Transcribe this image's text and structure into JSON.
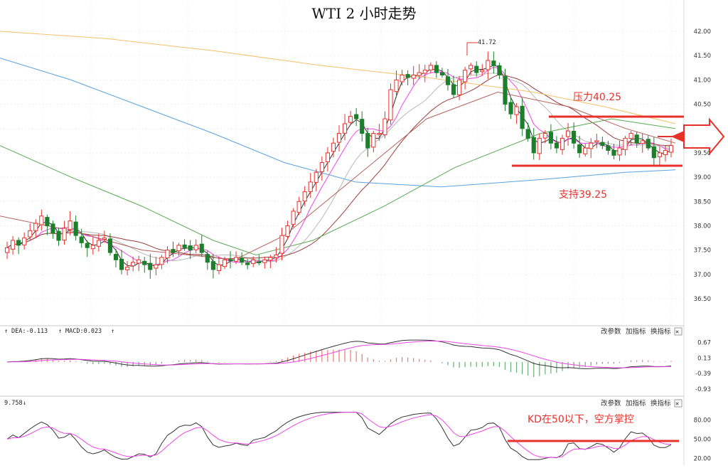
{
  "page": {
    "title": "WTI 2 小时走势"
  },
  "price_axis": {
    "ticks": [
      "42.00",
      "41.50",
      "41.00",
      "40.50",
      "40.00",
      "39.50",
      "39.00",
      "38.50",
      "38.00",
      "37.50",
      "37.00",
      "36.50"
    ],
    "values": [
      42.0,
      41.5,
      41.0,
      40.5,
      40.0,
      39.5,
      39.0,
      38.5,
      38.0,
      37.5,
      37.0,
      36.5
    ],
    "range": [
      36.3,
      42.3
    ]
  },
  "annotations": {
    "high_label": "41.72",
    "resistance_label": "压力40.25",
    "resistance_value": 40.25,
    "support_label": "支持39.25",
    "support_value": 39.25
  },
  "macd_panel": {
    "header_dea": "DEA:-0.113",
    "header_macd": "MACD:0.023",
    "buttons": [
      "改参数",
      "加指标",
      "换指标"
    ],
    "close_symbol": "✕",
    "ticks": [
      "0.67",
      "0.13",
      "-0.39",
      "-0.93"
    ],
    "tick_values": [
      0.67,
      0.13,
      -0.39,
      -0.93
    ],
    "range": [
      -1.0,
      0.8
    ]
  },
  "kd_panel": {
    "header_value": "9.758",
    "buttons": [
      "改参数",
      "加指标",
      "换指标"
    ],
    "close_symbol": "✕",
    "ticks": [
      "80.00",
      "50.00",
      "20.00"
    ],
    "tick_values": [
      80,
      50,
      20
    ],
    "range": [
      16,
      96
    ],
    "note": "KD在50以下，空方掌控",
    "level_line": 50
  },
  "colors": {
    "up": "#e8312b",
    "down": "#1d7f2c",
    "annotation": "#e8312b",
    "ma_black": "#333333",
    "ma_magenta": "#ee46e6",
    "ma_gray": "#b8b8b8",
    "ma_brown": "#b4615c",
    "ma_green": "#5aaa55",
    "ma_blue": "#5aa2e0",
    "ma_orange": "#f5c168",
    "ma_maroon": "#9a3b3b"
  },
  "chart_data": [
    {
      "type": "candlestick",
      "title": "WTI 2 小时走势",
      "ylim": [
        36.3,
        42.3
      ],
      "grid": true,
      "series_close": [
        37.55,
        37.7,
        37.6,
        37.75,
        37.9,
        38.05,
        38.2,
        38.0,
        37.85,
        37.7,
        37.95,
        38.1,
        37.8,
        37.65,
        37.55,
        37.6,
        37.7,
        37.75,
        37.45,
        37.3,
        37.1,
        37.15,
        37.25,
        37.3,
        37.2,
        37.1,
        37.2,
        37.35,
        37.5,
        37.45,
        37.6,
        37.55,
        37.5,
        37.6,
        37.45,
        37.25,
        37.1,
        37.2,
        37.3,
        37.3,
        37.35,
        37.25,
        37.2,
        37.3,
        37.25,
        37.3,
        37.35,
        37.4,
        37.8,
        38.0,
        38.3,
        38.5,
        38.7,
        38.9,
        39.1,
        39.3,
        39.5,
        39.7,
        39.9,
        40.1,
        40.25,
        40.2,
        39.9,
        39.6,
        39.9,
        39.9,
        40.2,
        40.8,
        41.0,
        41.1,
        41.05,
        41.1,
        41.15,
        41.2,
        41.3,
        41.15,
        41.1,
        40.9,
        40.7,
        41.0,
        41.2,
        41.3,
        41.15,
        41.2,
        41.4,
        41.3,
        41.1,
        40.5,
        40.3,
        40.45,
        40.0,
        39.8,
        39.5,
        39.8,
        39.9,
        39.7,
        39.6,
        39.8,
        39.95,
        39.7,
        39.5,
        39.6,
        39.7,
        39.75,
        39.65,
        39.55,
        39.45,
        39.6,
        39.8,
        39.9,
        39.7,
        39.75,
        39.6,
        39.4,
        39.5,
        39.55,
        39.65
      ],
      "resistance": 40.25,
      "support": 39.25,
      "high": 41.72
    },
    {
      "type": "line",
      "title": "MACD",
      "series": [
        {
          "name": "DEA",
          "last": -0.113
        },
        {
          "name": "MACD",
          "last": 0.023
        }
      ],
      "ylim": [
        -1.0,
        0.8
      ]
    },
    {
      "type": "line",
      "title": "KD",
      "ylim": [
        16,
        96
      ],
      "level": 50
    }
  ]
}
